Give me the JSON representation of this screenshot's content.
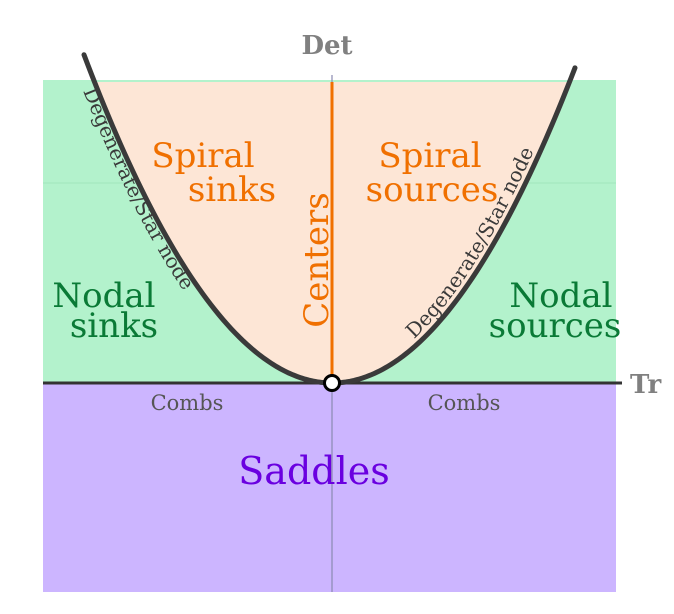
{
  "axes": {
    "x_label": "Tr",
    "y_label": "Det"
  },
  "regions": {
    "spiral_sinks": "Spiral sinks",
    "spiral_sinks_line1": "Spiral",
    "spiral_sinks_line2": "sinks",
    "spiral_sources_line1": "Spiral",
    "spiral_sources_line2": "sources",
    "centers": "Centers",
    "nodal_sinks_line1": "Nodal",
    "nodal_sinks_line2": "sinks",
    "nodal_sources_line1": "Nodal",
    "nodal_sources_line2": "sources",
    "saddles": "Saddles"
  },
  "boundaries": {
    "degenerate_left": "Degenerate/Star node",
    "degenerate_right": "Degenerate/Star node",
    "combs_left": "Combs",
    "combs_right": "Combs"
  },
  "colors": {
    "spiral_fill": "#fde6d6",
    "nodal_fill": "#b3f2cc",
    "saddle_fill": "#ccb5ff",
    "centers_line": "#f07000",
    "spiral_text": "#f07000",
    "nodal_text": "#0a7a36",
    "saddle_text": "#6a00e0",
    "parabola": "#3a3a3a",
    "axis_text": "#808080"
  }
}
